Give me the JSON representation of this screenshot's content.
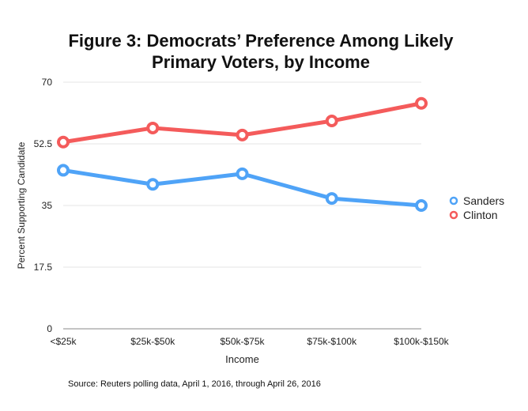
{
  "chart_data": {
    "type": "line",
    "title": "Figure 3: Democrats’ Preference Among Likely Primary Voters, by Income",
    "xlabel": "Income",
    "ylabel": "Percent Supporting Candidate",
    "categories": [
      "<$25k",
      "$25k-$50k",
      "$50k-$75k",
      "$75k-$100k",
      "$100k-$150k"
    ],
    "ylim": [
      0,
      70
    ],
    "yticks": [
      0,
      17.5,
      35,
      52.5,
      70
    ],
    "grid": true,
    "legend": "right",
    "series": [
      {
        "name": "Sanders",
        "color": "#4fa3f7",
        "values": [
          45,
          41,
          44,
          37,
          35
        ]
      },
      {
        "name": "Clinton",
        "color": "#f45b5b",
        "values": [
          53,
          57,
          55,
          59,
          64
        ]
      }
    ],
    "source": "Source: Reuters polling data, April 1, 2016, through April 26, 2016"
  }
}
